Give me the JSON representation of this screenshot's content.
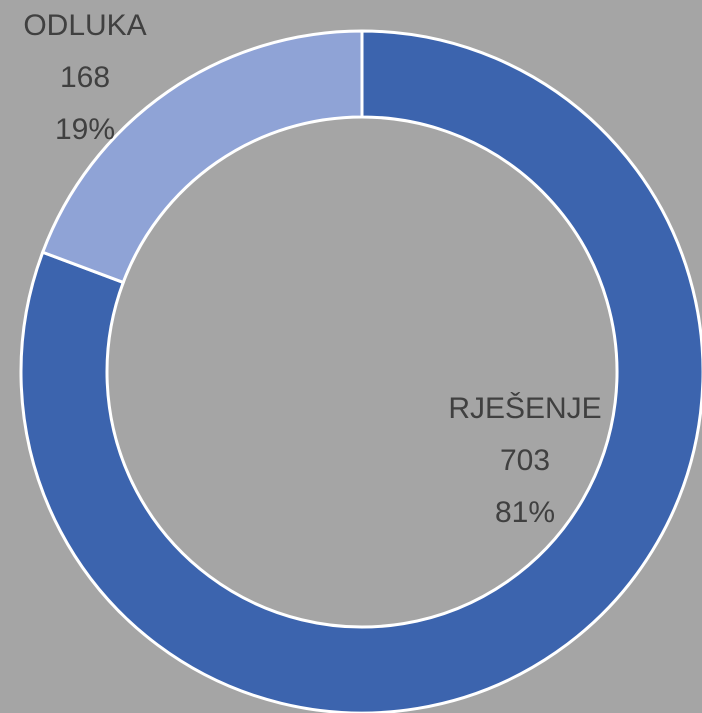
{
  "chart_data": {
    "type": "donut",
    "categories": [
      "RJEŠENJE",
      "ODLUKA"
    ],
    "values": [
      703,
      168
    ],
    "percent_labels": [
      "81%",
      "19%"
    ],
    "colors": [
      "#3c64ae",
      "#8fa3d6"
    ]
  }
}
